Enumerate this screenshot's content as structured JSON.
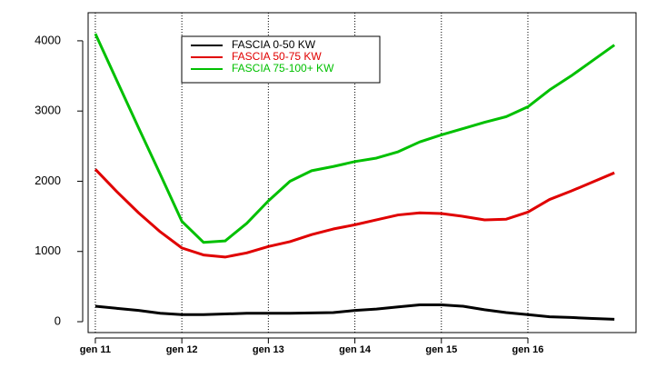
{
  "chart_data": {
    "type": "line",
    "x": [
      "2011-01",
      "2011-04",
      "2011-07",
      "2011-10",
      "2012-01",
      "2012-04",
      "2012-07",
      "2012-10",
      "2013-01",
      "2013-04",
      "2013-07",
      "2013-10",
      "2014-01",
      "2014-04",
      "2014-07",
      "2014-10",
      "2015-01",
      "2015-04",
      "2015-07",
      "2015-10",
      "2016-01",
      "2016-04",
      "2016-07",
      "2016-10",
      "2017-01"
    ],
    "series": [
      {
        "name": "FASCIA 0-50 KW",
        "color": "#000000",
        "values": [
          220,
          190,
          160,
          120,
          100,
          100,
          110,
          120,
          120,
          120,
          125,
          130,
          160,
          180,
          210,
          240,
          240,
          220,
          170,
          130,
          100,
          70,
          60,
          45,
          35
        ]
      },
      {
        "name": "FASCIA 50-75 KW",
        "color": "#e00000",
        "values": [
          2170,
          1850,
          1550,
          1280,
          1050,
          950,
          920,
          980,
          1070,
          1140,
          1240,
          1320,
          1380,
          1450,
          1520,
          1550,
          1540,
          1500,
          1450,
          1460,
          1560,
          1740,
          1860,
          1990,
          2120
        ]
      },
      {
        "name": "FASCIA 75-100+ KW",
        "color": "#00c000",
        "values": [
          4100,
          3430,
          2760,
          2100,
          1430,
          1130,
          1150,
          1400,
          1720,
          2000,
          2150,
          2210,
          2280,
          2330,
          2420,
          2560,
          2660,
          2750,
          2840,
          2920,
          3060,
          3300,
          3500,
          3720,
          3940
        ]
      }
    ],
    "xlim": [
      "2010-12",
      "2017-04"
    ],
    "xticks": [
      {
        "value": "2011-01",
        "label": "gen 11"
      },
      {
        "value": "2012-01",
        "label": "gen 12"
      },
      {
        "value": "2013-01",
        "label": "gen 13"
      },
      {
        "value": "2014-01",
        "label": "gen 14"
      },
      {
        "value": "2015-01",
        "label": "gen 15"
      },
      {
        "value": "2016-01",
        "label": "gen 16"
      }
    ],
    "ylim": [
      -155,
      4400
    ],
    "yticks": [
      0,
      1000,
      2000,
      3000,
      4000
    ],
    "grid": "x",
    "legend": "top-left"
  }
}
